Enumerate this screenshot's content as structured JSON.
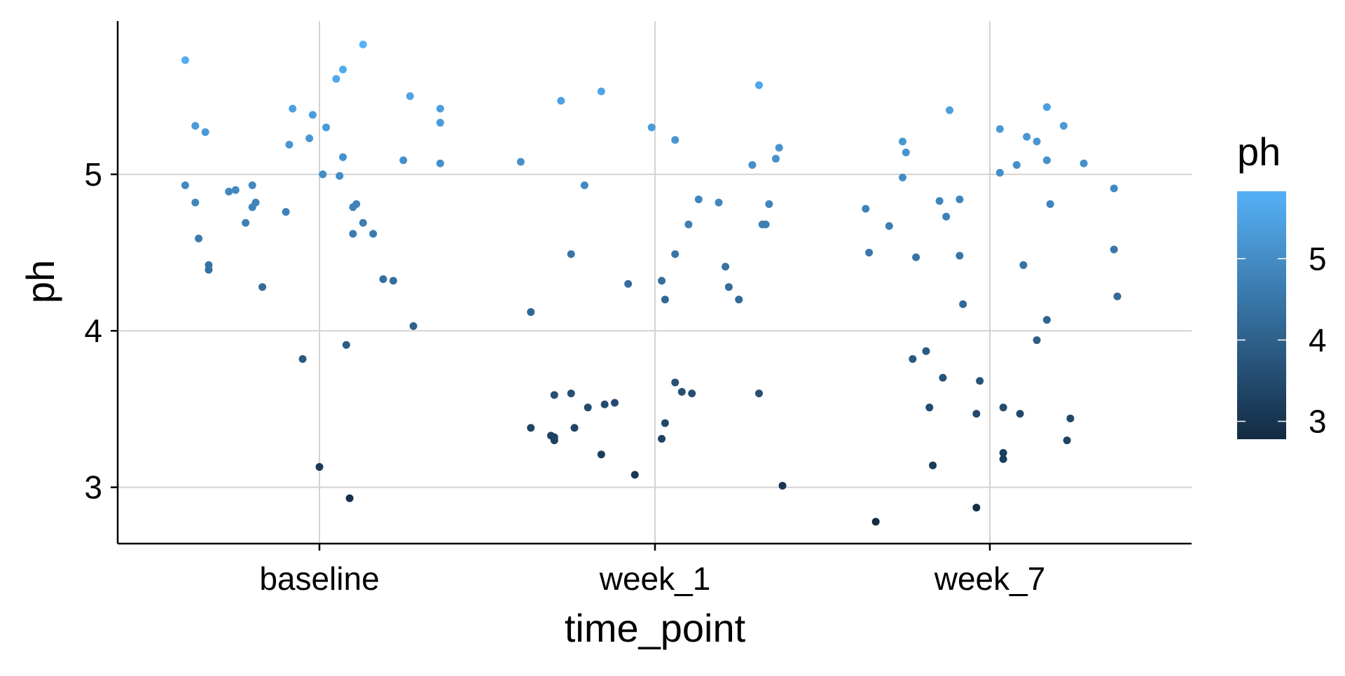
{
  "chart_data": {
    "type": "scatter",
    "title": "",
    "xlabel": "time_point",
    "ylabel": "ph",
    "categories": [
      "baseline",
      "week_1",
      "week_7"
    ],
    "yticks": [
      3,
      4,
      5
    ],
    "ylim": [
      2.64,
      5.98
    ],
    "grid": true,
    "jitter": "horizontal jitter within each category",
    "legend": {
      "title": "ph",
      "type": "colorbar",
      "position": "right",
      "range": [
        2.78,
        5.83
      ],
      "ticks": [
        3,
        4,
        5
      ],
      "color_low": "#132b43",
      "color_high": "#56b1f7"
    },
    "points": [
      {
        "x": "baseline",
        "offset": -0.4,
        "y": 5.73
      },
      {
        "x": "baseline",
        "offset": -0.37,
        "y": 5.31
      },
      {
        "x": "baseline",
        "offset": -0.34,
        "y": 5.27
      },
      {
        "x": "baseline",
        "offset": -0.4,
        "y": 4.93
      },
      {
        "x": "baseline",
        "offset": -0.37,
        "y": 4.82
      },
      {
        "x": "baseline",
        "offset": -0.36,
        "y": 4.59
      },
      {
        "x": "baseline",
        "offset": -0.33,
        "y": 4.42
      },
      {
        "x": "baseline",
        "offset": -0.33,
        "y": 4.39
      },
      {
        "x": "baseline",
        "offset": -0.27,
        "y": 4.89
      },
      {
        "x": "baseline",
        "offset": -0.25,
        "y": 4.9
      },
      {
        "x": "baseline",
        "offset": -0.2,
        "y": 4.93
      },
      {
        "x": "baseline",
        "offset": -0.2,
        "y": 4.79
      },
      {
        "x": "baseline",
        "offset": -0.19,
        "y": 4.82
      },
      {
        "x": "baseline",
        "offset": -0.22,
        "y": 4.69
      },
      {
        "x": "baseline",
        "offset": -0.17,
        "y": 4.28
      },
      {
        "x": "baseline",
        "offset": -0.1,
        "y": 4.76
      },
      {
        "x": "baseline",
        "offset": -0.09,
        "y": 5.19
      },
      {
        "x": "baseline",
        "offset": -0.08,
        "y": 5.42
      },
      {
        "x": "baseline",
        "offset": -0.05,
        "y": 3.82
      },
      {
        "x": "baseline",
        "offset": -0.03,
        "y": 5.23
      },
      {
        "x": "baseline",
        "offset": -0.02,
        "y": 5.38
      },
      {
        "x": "baseline",
        "offset": 0.01,
        "y": 5.0
      },
      {
        "x": "baseline",
        "offset": 0.02,
        "y": 5.3
      },
      {
        "x": "baseline",
        "offset": 0.0,
        "y": 3.13
      },
      {
        "x": "baseline",
        "offset": 0.05,
        "y": 5.61
      },
      {
        "x": "baseline",
        "offset": 0.07,
        "y": 5.67
      },
      {
        "x": "baseline",
        "offset": 0.06,
        "y": 4.99
      },
      {
        "x": "baseline",
        "offset": 0.07,
        "y": 5.11
      },
      {
        "x": "baseline",
        "offset": 0.08,
        "y": 3.91
      },
      {
        "x": "baseline",
        "offset": 0.1,
        "y": 4.79
      },
      {
        "x": "baseline",
        "offset": 0.11,
        "y": 4.81
      },
      {
        "x": "baseline",
        "offset": 0.1,
        "y": 4.62
      },
      {
        "x": "baseline",
        "offset": 0.13,
        "y": 4.69
      },
      {
        "x": "baseline",
        "offset": 0.09,
        "y": 2.93
      },
      {
        "x": "baseline",
        "offset": 0.13,
        "y": 5.83
      },
      {
        "x": "baseline",
        "offset": 0.16,
        "y": 4.62
      },
      {
        "x": "baseline",
        "offset": 0.19,
        "y": 4.33
      },
      {
        "x": "baseline",
        "offset": 0.22,
        "y": 4.32
      },
      {
        "x": "baseline",
        "offset": 0.25,
        "y": 5.09
      },
      {
        "x": "baseline",
        "offset": 0.27,
        "y": 5.5
      },
      {
        "x": "baseline",
        "offset": 0.28,
        "y": 4.03
      },
      {
        "x": "baseline",
        "offset": 0.36,
        "y": 5.42
      },
      {
        "x": "baseline",
        "offset": 0.36,
        "y": 5.33
      },
      {
        "x": "baseline",
        "offset": 0.36,
        "y": 5.07
      },
      {
        "x": "week_1",
        "offset": -0.4,
        "y": 5.08
      },
      {
        "x": "week_1",
        "offset": -0.37,
        "y": 4.12
      },
      {
        "x": "week_1",
        "offset": -0.37,
        "y": 3.38
      },
      {
        "x": "week_1",
        "offset": -0.31,
        "y": 3.33
      },
      {
        "x": "week_1",
        "offset": -0.3,
        "y": 3.59
      },
      {
        "x": "week_1",
        "offset": -0.3,
        "y": 3.3
      },
      {
        "x": "week_1",
        "offset": -0.3,
        "y": 3.32
      },
      {
        "x": "week_1",
        "offset": -0.28,
        "y": 5.47
      },
      {
        "x": "week_1",
        "offset": -0.25,
        "y": 4.49
      },
      {
        "x": "week_1",
        "offset": -0.25,
        "y": 3.6
      },
      {
        "x": "week_1",
        "offset": -0.24,
        "y": 3.38
      },
      {
        "x": "week_1",
        "offset": -0.21,
        "y": 4.93
      },
      {
        "x": "week_1",
        "offset": -0.2,
        "y": 3.51
      },
      {
        "x": "week_1",
        "offset": -0.16,
        "y": 5.53
      },
      {
        "x": "week_1",
        "offset": -0.16,
        "y": 3.21
      },
      {
        "x": "week_1",
        "offset": -0.15,
        "y": 3.53
      },
      {
        "x": "week_1",
        "offset": -0.12,
        "y": 3.54
      },
      {
        "x": "week_1",
        "offset": -0.08,
        "y": 4.3
      },
      {
        "x": "week_1",
        "offset": -0.06,
        "y": 3.08
      },
      {
        "x": "week_1",
        "offset": -0.01,
        "y": 5.3
      },
      {
        "x": "week_1",
        "offset": 0.02,
        "y": 4.32
      },
      {
        "x": "week_1",
        "offset": 0.03,
        "y": 4.2
      },
      {
        "x": "week_1",
        "offset": 0.03,
        "y": 3.41
      },
      {
        "x": "week_1",
        "offset": 0.02,
        "y": 3.31
      },
      {
        "x": "week_1",
        "offset": 0.06,
        "y": 5.22
      },
      {
        "x": "week_1",
        "offset": 0.06,
        "y": 4.49
      },
      {
        "x": "week_1",
        "offset": 0.06,
        "y": 3.67
      },
      {
        "x": "week_1",
        "offset": 0.08,
        "y": 3.61
      },
      {
        "x": "week_1",
        "offset": 0.1,
        "y": 4.68
      },
      {
        "x": "week_1",
        "offset": 0.11,
        "y": 3.6
      },
      {
        "x": "week_1",
        "offset": 0.13,
        "y": 4.84
      },
      {
        "x": "week_1",
        "offset": 0.19,
        "y": 4.82
      },
      {
        "x": "week_1",
        "offset": 0.21,
        "y": 4.41
      },
      {
        "x": "week_1",
        "offset": 0.22,
        "y": 4.28
      },
      {
        "x": "week_1",
        "offset": 0.25,
        "y": 4.2
      },
      {
        "x": "week_1",
        "offset": 0.29,
        "y": 5.06
      },
      {
        "x": "week_1",
        "offset": 0.31,
        "y": 5.57
      },
      {
        "x": "week_1",
        "offset": 0.31,
        "y": 3.6
      },
      {
        "x": "week_1",
        "offset": 0.32,
        "y": 4.68
      },
      {
        "x": "week_1",
        "offset": 0.33,
        "y": 4.68
      },
      {
        "x": "week_1",
        "offset": 0.34,
        "y": 4.81
      },
      {
        "x": "week_1",
        "offset": 0.36,
        "y": 5.1
      },
      {
        "x": "week_1",
        "offset": 0.37,
        "y": 5.17
      },
      {
        "x": "week_1",
        "offset": 0.38,
        "y": 3.01
      },
      {
        "x": "week_7",
        "offset": -0.37,
        "y": 4.78
      },
      {
        "x": "week_7",
        "offset": -0.36,
        "y": 4.5
      },
      {
        "x": "week_7",
        "offset": -0.34,
        "y": 2.78
      },
      {
        "x": "week_7",
        "offset": -0.3,
        "y": 4.67
      },
      {
        "x": "week_7",
        "offset": -0.26,
        "y": 4.98
      },
      {
        "x": "week_7",
        "offset": -0.26,
        "y": 5.21
      },
      {
        "x": "week_7",
        "offset": -0.25,
        "y": 5.14
      },
      {
        "x": "week_7",
        "offset": -0.22,
        "y": 4.47
      },
      {
        "x": "week_7",
        "offset": -0.23,
        "y": 3.82
      },
      {
        "x": "week_7",
        "offset": -0.19,
        "y": 3.87
      },
      {
        "x": "week_7",
        "offset": -0.18,
        "y": 3.51
      },
      {
        "x": "week_7",
        "offset": -0.17,
        "y": 3.14
      },
      {
        "x": "week_7",
        "offset": -0.15,
        "y": 4.83
      },
      {
        "x": "week_7",
        "offset": -0.14,
        "y": 3.7
      },
      {
        "x": "week_7",
        "offset": -0.12,
        "y": 5.41
      },
      {
        "x": "week_7",
        "offset": -0.13,
        "y": 4.73
      },
      {
        "x": "week_7",
        "offset": -0.09,
        "y": 4.84
      },
      {
        "x": "week_7",
        "offset": -0.09,
        "y": 4.48
      },
      {
        "x": "week_7",
        "offset": -0.08,
        "y": 4.17
      },
      {
        "x": "week_7",
        "offset": -0.04,
        "y": 3.47
      },
      {
        "x": "week_7",
        "offset": -0.03,
        "y": 3.68
      },
      {
        "x": "week_7",
        "offset": -0.04,
        "y": 2.87
      },
      {
        "x": "week_7",
        "offset": 0.03,
        "y": 5.29
      },
      {
        "x": "week_7",
        "offset": 0.03,
        "y": 5.01
      },
      {
        "x": "week_7",
        "offset": 0.04,
        "y": 3.51
      },
      {
        "x": "week_7",
        "offset": 0.04,
        "y": 3.22
      },
      {
        "x": "week_7",
        "offset": 0.04,
        "y": 3.18
      },
      {
        "x": "week_7",
        "offset": 0.08,
        "y": 5.06
      },
      {
        "x": "week_7",
        "offset": 0.09,
        "y": 3.47
      },
      {
        "x": "week_7",
        "offset": 0.1,
        "y": 4.42
      },
      {
        "x": "week_7",
        "offset": 0.11,
        "y": 5.24
      },
      {
        "x": "week_7",
        "offset": 0.14,
        "y": 5.21
      },
      {
        "x": "week_7",
        "offset": 0.14,
        "y": 3.94
      },
      {
        "x": "week_7",
        "offset": 0.17,
        "y": 5.43
      },
      {
        "x": "week_7",
        "offset": 0.17,
        "y": 5.09
      },
      {
        "x": "week_7",
        "offset": 0.17,
        "y": 4.07
      },
      {
        "x": "week_7",
        "offset": 0.18,
        "y": 4.81
      },
      {
        "x": "week_7",
        "offset": 0.22,
        "y": 5.31
      },
      {
        "x": "week_7",
        "offset": 0.23,
        "y": 3.3
      },
      {
        "x": "week_7",
        "offset": 0.24,
        "y": 3.44
      },
      {
        "x": "week_7",
        "offset": 0.28,
        "y": 5.07
      },
      {
        "x": "week_7",
        "offset": 0.37,
        "y": 4.91
      },
      {
        "x": "week_7",
        "offset": 0.37,
        "y": 4.52
      },
      {
        "x": "week_7",
        "offset": 0.38,
        "y": 4.22
      }
    ]
  },
  "colors": {
    "grid": "#d3d3d3",
    "axis": "#000000",
    "background": "#ffffff"
  }
}
